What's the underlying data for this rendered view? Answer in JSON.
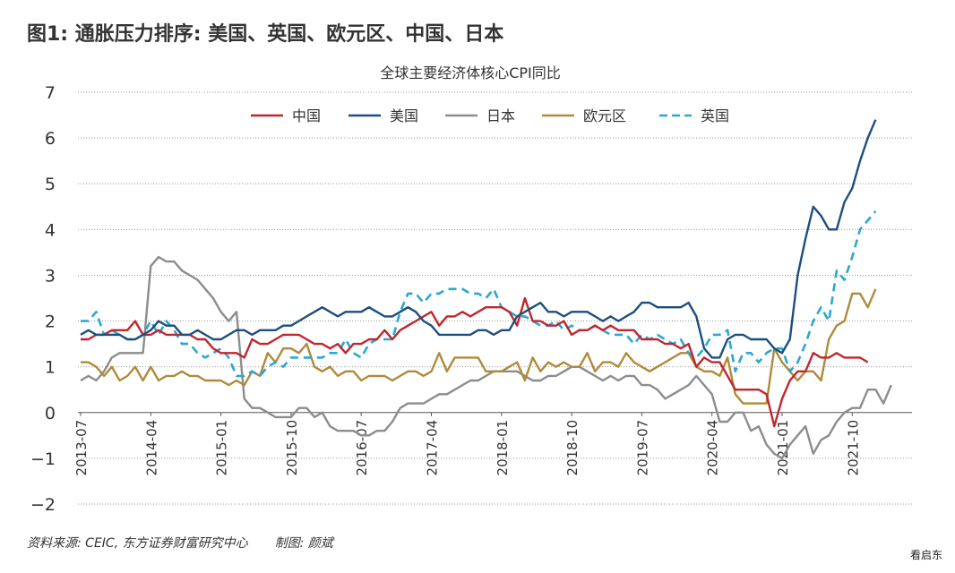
{
  "figure_title": "图1: 通胀压力排序: 美国、英国、欧元区、中国、日本",
  "source_label": "资料来源: CEIC, 东方证券财富研究中心",
  "credit_label": "制图: 颜斌",
  "watermark": "看启东",
  "colors": {
    "china": "#C0272D",
    "us": "#1D4E7E",
    "japan": "#8C8C8C",
    "euro": "#B08A3A",
    "uk": "#2BA8CF"
  },
  "chart_data": {
    "type": "line",
    "title": "全球主要经济体核心CPI同比",
    "ylim": [
      -2,
      7
    ],
    "yticks": [
      "7",
      "6",
      "5",
      "4",
      "3",
      "2",
      "1",
      "0",
      "−1",
      "−2"
    ],
    "ytick_values": [
      7,
      6,
      5,
      4,
      3,
      2,
      1,
      0,
      -1,
      -2
    ],
    "grid": true,
    "legend_position": "top",
    "x_start": "2013-07",
    "x_end": "2022-05",
    "xticks": [
      "2013-07",
      "2014-04",
      "2015-01",
      "2015-10",
      "2016-07",
      "2017-04",
      "2018-01",
      "2018-10",
      "2019-07",
      "2020-04",
      "2021-01",
      "2021-10"
    ],
    "series": [
      {
        "name": "中国",
        "key": "china",
        "style": "solid",
        "values": [
          1.6,
          1.6,
          1.7,
          1.7,
          1.8,
          1.8,
          1.8,
          2.0,
          1.7,
          1.7,
          1.8,
          1.7,
          1.7,
          1.7,
          1.7,
          1.6,
          1.6,
          1.4,
          1.3,
          1.3,
          1.3,
          1.2,
          1.6,
          1.5,
          1.5,
          1.6,
          1.7,
          1.7,
          1.7,
          1.6,
          1.5,
          1.5,
          1.4,
          1.5,
          1.3,
          1.5,
          1.5,
          1.6,
          1.6,
          1.8,
          1.6,
          1.8,
          1.9,
          2.0,
          2.1,
          2.2,
          1.9,
          2.1,
          2.1,
          2.2,
          2.1,
          2.2,
          2.3,
          2.3,
          2.3,
          2.2,
          1.9,
          2.5,
          2.0,
          2.0,
          1.9,
          1.9,
          2.0,
          1.7,
          1.8,
          1.8,
          1.9,
          1.8,
          1.9,
          1.8,
          1.8,
          1.8,
          1.6,
          1.6,
          1.6,
          1.5,
          1.5,
          1.4,
          1.5,
          1.0,
          1.2,
          1.1,
          1.1,
          0.8,
          0.5,
          0.5,
          0.5,
          0.5,
          0.4,
          -0.3,
          0.3,
          0.7,
          0.9,
          0.9,
          1.3,
          1.2,
          1.2,
          1.3,
          1.2,
          1.2,
          1.2,
          1.1
        ]
      },
      {
        "name": "美国",
        "key": "us",
        "style": "solid",
        "values": [
          1.7,
          1.8,
          1.7,
          1.7,
          1.7,
          1.7,
          1.6,
          1.6,
          1.7,
          1.8,
          2.0,
          1.9,
          1.9,
          1.7,
          1.7,
          1.8,
          1.7,
          1.6,
          1.6,
          1.7,
          1.8,
          1.8,
          1.7,
          1.8,
          1.8,
          1.8,
          1.9,
          1.9,
          2.0,
          2.1,
          2.2,
          2.3,
          2.2,
          2.1,
          2.2,
          2.2,
          2.2,
          2.3,
          2.2,
          2.1,
          2.1,
          2.2,
          2.3,
          2.2,
          2.0,
          1.9,
          1.7,
          1.7,
          1.7,
          1.7,
          1.7,
          1.8,
          1.8,
          1.7,
          1.8,
          1.8,
          2.1,
          2.2,
          2.3,
          2.4,
          2.2,
          2.2,
          2.1,
          2.2,
          2.2,
          2.2,
          2.1,
          2.0,
          2.1,
          2.0,
          2.1,
          2.2,
          2.4,
          2.4,
          2.3,
          2.3,
          2.3,
          2.3,
          2.4,
          2.1,
          1.4,
          1.2,
          1.2,
          1.6,
          1.7,
          1.7,
          1.6,
          1.6,
          1.6,
          1.4,
          1.3,
          1.6,
          3.0,
          3.8,
          4.5,
          4.3,
          4.0,
          4.0,
          4.6,
          4.9,
          5.5,
          6.0,
          6.4
        ]
      },
      {
        "name": "日本",
        "key": "japan",
        "style": "solid",
        "values": [
          0.7,
          0.8,
          0.7,
          0.9,
          1.2,
          1.3,
          1.3,
          1.3,
          1.3,
          3.2,
          3.4,
          3.3,
          3.3,
          3.1,
          3.0,
          2.9,
          2.7,
          2.5,
          2.2,
          2.0,
          2.2,
          0.3,
          0.1,
          0.1,
          0.0,
          -0.1,
          -0.1,
          -0.1,
          0.1,
          0.1,
          -0.1,
          0.0,
          -0.3,
          -0.4,
          -0.4,
          -0.4,
          -0.5,
          -0.5,
          -0.4,
          -0.4,
          -0.2,
          0.1,
          0.2,
          0.2,
          0.2,
          0.3,
          0.4,
          0.4,
          0.5,
          0.6,
          0.7,
          0.7,
          0.8,
          0.9,
          0.9,
          0.9,
          0.9,
          0.8,
          0.7,
          0.7,
          0.8,
          0.8,
          0.9,
          1.0,
          1.0,
          0.9,
          0.8,
          0.7,
          0.8,
          0.7,
          0.8,
          0.8,
          0.6,
          0.6,
          0.5,
          0.3,
          0.4,
          0.5,
          0.6,
          0.8,
          0.6,
          0.4,
          -0.2,
          -0.2,
          0.0,
          0.0,
          -0.4,
          -0.3,
          -0.7,
          -0.9,
          -1.0,
          -0.7,
          -0.5,
          -0.3,
          -0.9,
          -0.6,
          -0.5,
          -0.2,
          0.0,
          0.1,
          0.1,
          0.5,
          0.5,
          0.2,
          0.6
        ]
      },
      {
        "name": "欧元区",
        "key": "euro",
        "style": "solid",
        "values": [
          1.1,
          1.1,
          1.0,
          0.8,
          1.0,
          0.7,
          0.8,
          1.0,
          0.7,
          1.0,
          0.7,
          0.8,
          0.8,
          0.9,
          0.8,
          0.8,
          0.7,
          0.7,
          0.7,
          0.6,
          0.7,
          0.6,
          0.9,
          0.8,
          1.3,
          1.1,
          1.4,
          1.4,
          1.3,
          1.5,
          1.0,
          0.9,
          1.0,
          0.8,
          0.9,
          0.9,
          0.7,
          0.8,
          0.8,
          0.8,
          0.7,
          0.8,
          0.9,
          0.9,
          0.8,
          0.9,
          1.3,
          0.9,
          1.2,
          1.2,
          1.2,
          1.2,
          0.9,
          0.9,
          0.9,
          1.0,
          1.1,
          0.7,
          1.2,
          0.9,
          1.1,
          1.0,
          1.1,
          1.0,
          1.0,
          1.3,
          0.9,
          1.1,
          1.1,
          1.0,
          1.3,
          1.1,
          1.0,
          0.9,
          1.0,
          1.1,
          1.2,
          1.3,
          1.3,
          1.0,
          0.9,
          0.9,
          0.8,
          1.2,
          0.4,
          0.2,
          0.2,
          0.2,
          0.2,
          1.4,
          1.1,
          0.9,
          0.7,
          0.9,
          0.9,
          0.7,
          1.6,
          1.9,
          2.0,
          2.6,
          2.6,
          2.3,
          2.7
        ]
      },
      {
        "name": "英国",
        "key": "uk",
        "style": "dashed",
        "values": [
          2.0,
          2.0,
          2.2,
          1.7,
          1.8,
          1.7,
          1.6,
          1.6,
          1.7,
          2.0,
          1.7,
          2.0,
          1.8,
          1.5,
          1.5,
          1.3,
          1.2,
          1.3,
          1.4,
          1.2,
          0.8,
          0.8,
          0.9,
          0.8,
          1.0,
          1.1,
          1.0,
          1.2,
          1.2,
          1.2,
          1.2,
          1.2,
          1.3,
          1.3,
          1.6,
          1.3,
          1.2,
          1.5,
          1.6,
          1.6,
          1.6,
          2.2,
          2.6,
          2.6,
          2.4,
          2.6,
          2.6,
          2.7,
          2.7,
          2.7,
          2.6,
          2.6,
          2.5,
          2.7,
          2.3,
          2.2,
          2.1,
          2.1,
          2.0,
          1.9,
          1.9,
          2.0,
          1.8,
          1.9,
          1.8,
          1.8,
          1.9,
          1.8,
          1.7,
          1.7,
          1.7,
          1.5,
          1.7,
          1.6,
          1.7,
          1.6,
          1.5,
          1.6,
          1.3,
          1.2,
          1.4,
          1.7,
          1.7,
          1.8,
          0.9,
          1.3,
          1.3,
          1.1,
          1.3,
          1.4,
          1.4,
          0.9,
          1.1,
          1.5,
          2.0,
          2.3,
          2.0,
          3.1,
          2.9,
          3.4,
          4.0,
          4.2,
          4.4
        ]
      }
    ]
  }
}
